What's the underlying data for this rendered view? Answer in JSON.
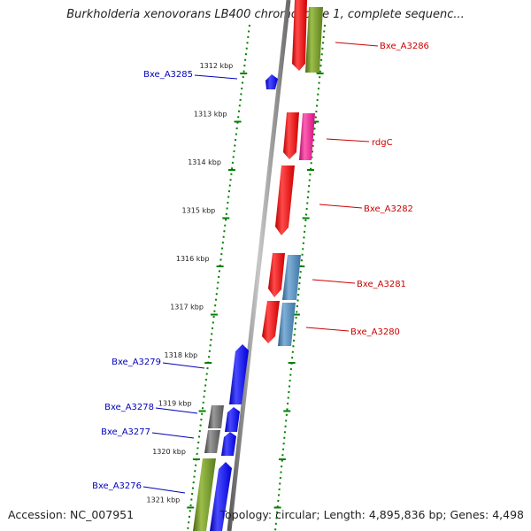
{
  "title": "Burkholderia xenovorans LB400 chromosome 1, complete sequenc...",
  "ruler": [
    {
      "label": "1312 kbp"
    },
    {
      "label": "1313 kbp"
    },
    {
      "label": "1314 kbp"
    },
    {
      "label": "1315 kbp"
    },
    {
      "label": "1316 kbp"
    },
    {
      "label": "1317 kbp"
    },
    {
      "label": "1318 kbp"
    },
    {
      "label": "1319 kbp"
    },
    {
      "label": "1320 kbp"
    },
    {
      "label": "1321 kbp"
    }
  ],
  "gene_labels": [
    {
      "name": "Bxe_A3286",
      "strand": "plus"
    },
    {
      "name": "Bxe_A3285",
      "strand": "minus"
    },
    {
      "name": "rdgC",
      "strand": "plus"
    },
    {
      "name": "Bxe_A3282",
      "strand": "plus"
    },
    {
      "name": "Bxe_A3281",
      "strand": "plus"
    },
    {
      "name": "Bxe_A3280",
      "strand": "plus"
    },
    {
      "name": "Bxe_A3279",
      "strand": "minus"
    },
    {
      "name": "Bxe_A3278",
      "strand": "minus"
    },
    {
      "name": "Bxe_A3277",
      "strand": "minus"
    },
    {
      "name": "Bxe_A3276",
      "strand": "minus"
    }
  ],
  "colors": {
    "plus_label": "#cc0000",
    "minus_label": "#0000bb",
    "red_gene": "#ff0000",
    "pink_gene": "#ff1493",
    "steelblue_gene": "#4682b4",
    "olive_gene": "#6b8e23",
    "blue_gene": "#0000ff",
    "gray_gene": "#696969",
    "backbone": "#8c8c8c",
    "dotted_guide": "#008000"
  },
  "footer": {
    "accession": "Accession: NC_007951",
    "stats": "Topology: circular; Length: 4,895,836 bp; Genes: 4,498"
  }
}
